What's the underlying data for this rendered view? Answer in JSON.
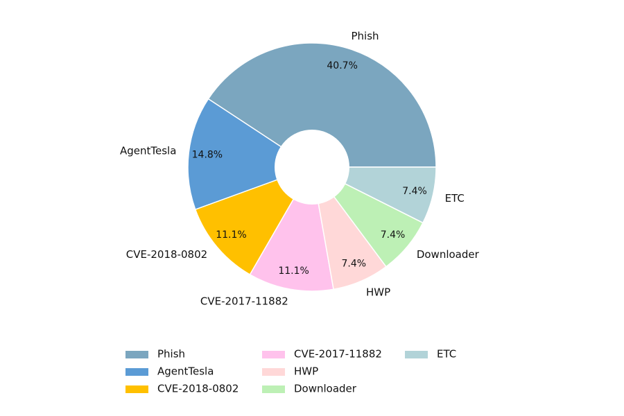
{
  "chart_data": {
    "type": "pie",
    "donut": true,
    "title": "",
    "categories": [
      "Phish",
      "AgentTesla",
      "CVE-2018-0802",
      "CVE-2017-11882",
      "HWP",
      "Downloader",
      "ETC"
    ],
    "values": [
      40.7,
      14.8,
      11.1,
      11.1,
      7.4,
      7.4,
      7.4
    ],
    "percent_labels": [
      "40.7%",
      "14.8%",
      "11.1%",
      "11.1%",
      "7.4%",
      "7.4%",
      "7.4%"
    ],
    "colors": [
      "#7BA6BF",
      "#5B9BD5",
      "#FFC000",
      "#FFC2EC",
      "#FFD8D8",
      "#BDF0B5",
      "#B2D3D8"
    ],
    "start_angle_deg": 0,
    "direction": "counterclockwise",
    "legend": {
      "position": "bottom",
      "columns": 3,
      "entries": [
        "Phish",
        "AgentTesla",
        "CVE-2018-0802",
        "CVE-2017-11882",
        "HWP",
        "Downloader",
        "ETC"
      ]
    }
  }
}
